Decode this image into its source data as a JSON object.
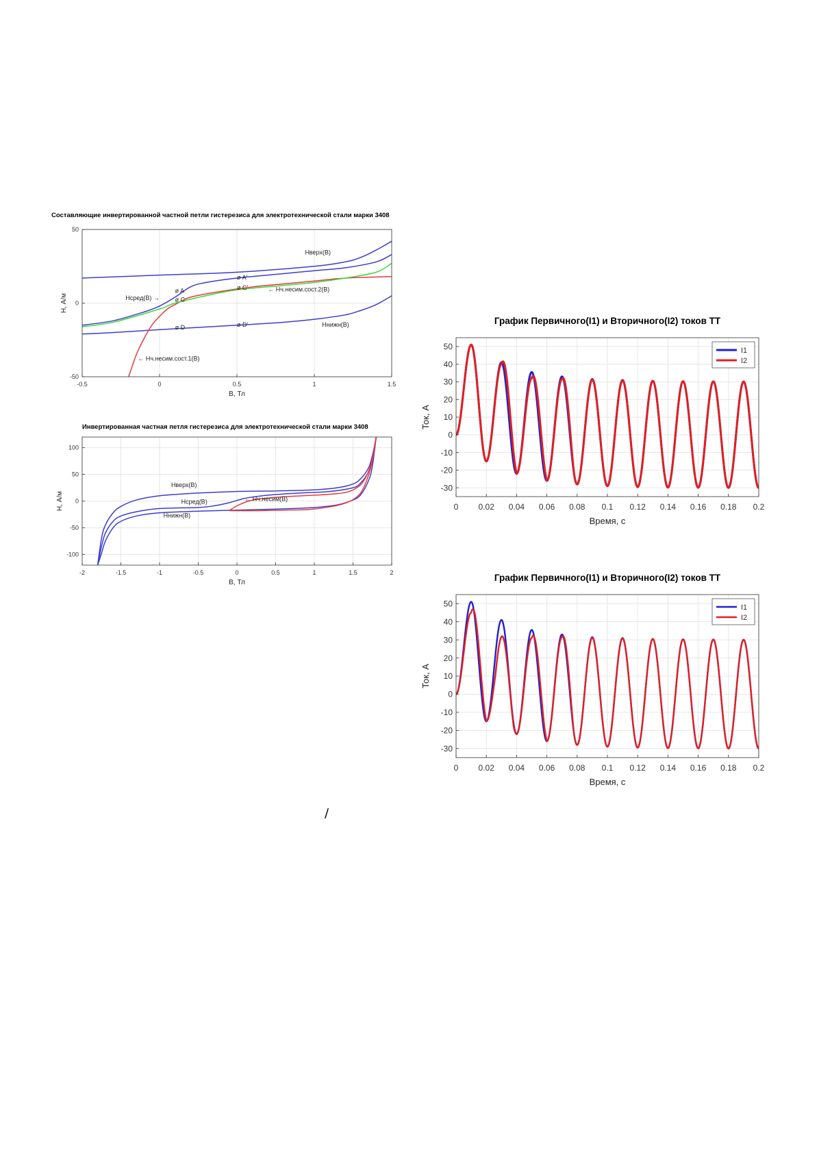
{
  "stray_mark": "/",
  "colors": {
    "blue": "#3c3cd2",
    "red": "#e53a3a",
    "green": "#3cd83c",
    "grid": "#e6e6e6"
  },
  "chart_data": [
    {
      "id": "chart1",
      "type": "line",
      "title": "Составляющие инвертированной частной петли гистерезиса для электротехнической стали марки 3408",
      "xlabel": "B, Тл",
      "ylabel": "H, А/м",
      "xlim": [
        -0.5,
        1.5
      ],
      "ylim": [
        -50,
        50
      ],
      "xticks": [
        -0.5,
        0,
        0.5,
        1,
        1.5
      ],
      "xtick_labels": [
        "-0.5",
        "0",
        "0.5",
        "1",
        "1.5"
      ],
      "yticks": [
        -50,
        0,
        50
      ],
      "ytick_labels": [
        "-50",
        "0",
        "50"
      ],
      "grid": true,
      "series": [
        {
          "name": "Hверх(B)",
          "color": "#3c3cd2",
          "x": [
            -0.5,
            0,
            0.5,
            1,
            1.2,
            1.3,
            1.4,
            1.5
          ],
          "y": [
            17,
            19,
            21,
            25,
            28,
            31,
            36,
            42
          ]
        },
        {
          "name": "Hсред(B)",
          "color": "#3c3cd2",
          "x": [
            -0.5,
            -0.3,
            -0.1,
            0,
            0.1,
            0.2,
            0.3,
            0.5,
            0.8,
            1,
            1.2,
            1.4,
            1.5
          ],
          "y": [
            -15,
            -12,
            -6,
            -2,
            4,
            11,
            14,
            17,
            20,
            22,
            24,
            28,
            33
          ]
        },
        {
          "name": "Hнижн(B)",
          "color": "#3c3cd2",
          "x": [
            -0.5,
            -0.3,
            0,
            0.5,
            0.8,
            1,
            1.2,
            1.3,
            1.4,
            1.5
          ],
          "y": [
            -21,
            -20,
            -18,
            -15,
            -13,
            -11,
            -8,
            -5,
            -1,
            5
          ]
        },
        {
          "name": "Hч.несим.сост.1(B)",
          "color": "#e53a3a",
          "x": [
            -0.2,
            -0.15,
            -0.1,
            -0.05,
            0,
            0.05,
            0.1,
            0.2,
            0.4,
            0.6,
            0.8,
            1,
            1.2,
            1.5
          ],
          "y": [
            -50,
            -35,
            -24,
            -15,
            -9,
            -4,
            -1,
            4,
            8,
            11,
            13,
            15,
            17,
            18
          ]
        },
        {
          "name": "Hч.несим.сост.2(B)",
          "color": "#3cd83c",
          "x": [
            -0.5,
            -0.3,
            0,
            0.1,
            0.3,
            0.5,
            0.8,
            1,
            1.2,
            1.4,
            1.5
          ],
          "y": [
            -16,
            -13,
            -4,
            0,
            5,
            9,
            12,
            14,
            17,
            21,
            27
          ]
        }
      ],
      "annotations": [
        {
          "text": "Hверх(B)",
          "x": 0.94,
          "y": 33
        },
        {
          "text": "Hсред(B)",
          "x": -0.22,
          "y": 2
        },
        {
          "text": "→",
          "x": -0.04,
          "y": 2
        },
        {
          "text": "Hнижн(B)",
          "x": 1.05,
          "y": -16
        },
        {
          "text": "← Hч.несим.сост.2(B)",
          "x": 0.7,
          "y": 8
        },
        {
          "text": "← Hч.несим.сост.1(B)",
          "x": -0.14,
          "y": -39
        },
        {
          "text": "ø A",
          "x": 0.1,
          "y": 7
        },
        {
          "text": "ø C",
          "x": 0.1,
          "y": 1
        },
        {
          "text": "ø D",
          "x": 0.1,
          "y": -18
        },
        {
          "text": "ø A'",
          "x": 0.5,
          "y": 16
        },
        {
          "text": "ø C'",
          "x": 0.5,
          "y": 9
        },
        {
          "text": "ø D'",
          "x": 0.5,
          "y": -16
        }
      ]
    },
    {
      "id": "chart2",
      "type": "line",
      "title": "Инвертированная частная петля гистерезиса для электротехнической стали марки 3408",
      "xlabel": "B, Тл",
      "ylabel": "H, А/м",
      "xlim": [
        -2,
        2
      ],
      "ylim": [
        -120,
        120
      ],
      "xticks": [
        -2,
        -1.5,
        -1,
        -0.5,
        0,
        0.5,
        1,
        1.5,
        2
      ],
      "xtick_labels": [
        "-2",
        "-1.5",
        "-1",
        "-0.5",
        "0",
        "0.5",
        "1",
        "1.5",
        "2"
      ],
      "yticks": [
        -100,
        -50,
        0,
        50,
        100
      ],
      "ytick_labels": [
        "-100",
        "-50",
        "0",
        "50",
        "100"
      ],
      "grid": true,
      "series": [
        {
          "name": "Hверх(B)",
          "color": "#3c3cd2",
          "x": [
            -1.8,
            -1.75,
            -1.7,
            -1.6,
            -1.5,
            -1.3,
            -1.0,
            -0.5,
            0,
            0.5,
            1.0,
            1.3,
            1.5,
            1.6,
            1.7,
            1.75,
            1.78,
            1.8
          ],
          "y": [
            -120,
            -70,
            -45,
            -22,
            -10,
            2,
            10,
            15,
            18,
            19,
            21,
            25,
            32,
            42,
            62,
            85,
            105,
            120
          ]
        },
        {
          "name": "Hсред(B)",
          "color": "#3c3cd2",
          "x": [
            -1.8,
            -1.75,
            -1.7,
            -1.6,
            -1.5,
            -1.3,
            -1.0,
            -0.5,
            -0.3,
            -0.1,
            0.1,
            0.4,
            0.8,
            1.2,
            1.5,
            1.6,
            1.7,
            1.75,
            1.8
          ],
          "y": [
            -120,
            -85,
            -60,
            -38,
            -28,
            -20,
            -14,
            -12,
            -9,
            -3,
            5,
            11,
            15,
            18,
            25,
            34,
            55,
            80,
            120
          ]
        },
        {
          "name": "Hнижн(B)",
          "color": "#3c3cd2",
          "x": [
            -1.8,
            -1.75,
            -1.7,
            -1.6,
            -1.5,
            -1.3,
            -1.0,
            -0.5,
            0,
            0.5,
            1.0,
            1.3,
            1.5,
            1.6,
            1.7,
            1.75,
            1.8
          ],
          "y": [
            -120,
            -98,
            -75,
            -50,
            -38,
            -28,
            -22,
            -19,
            -17,
            -15,
            -12,
            -7,
            2,
            12,
            38,
            65,
            120
          ]
        },
        {
          "name": "Hч.несим(B)",
          "color": "#e53a3a",
          "x": [
            -0.1,
            0,
            0.15,
            0.3,
            0.6,
            1.0,
            1.3,
            1.45,
            1.55,
            1.62,
            1.7,
            1.75,
            1.8
          ],
          "y": [
            -18,
            -9,
            0,
            4,
            8,
            11,
            14,
            18,
            25,
            34,
            55,
            80,
            120
          ]
        },
        {
          "name": "Hч.несим(B) нижн",
          "color": "#e53a3a",
          "x": [
            -0.1,
            0.3,
            0.6,
            0.9,
            1.1,
            1.3,
            1.45,
            1.55,
            1.62,
            1.7,
            1.75,
            1.8
          ],
          "y": [
            -18,
            -18,
            -17,
            -16,
            -13,
            -8,
            -1,
            8,
            20,
            48,
            75,
            120
          ]
        }
      ],
      "annotations": [
        {
          "text": "Hверх(B)",
          "x": -0.85,
          "y": 26
        },
        {
          "text": "Hсред(B)",
          "x": -0.72,
          "y": -5
        },
        {
          "text": "Hнижн(B)",
          "x": -0.95,
          "y": -31
        },
        {
          "text": "← Hч.несим(B)",
          "x": 0.1,
          "y": 0
        }
      ]
    },
    {
      "id": "chart3",
      "type": "line",
      "title": "График Первичного(I1) и Вторичного(I2) токов ТТ",
      "xlabel": "Время, с",
      "ylabel": "Ток, А",
      "xlim": [
        0,
        0.2
      ],
      "ylim": [
        -35,
        55
      ],
      "xticks": [
        0,
        0.02,
        0.04,
        0.06,
        0.08,
        0.1,
        0.12,
        0.14,
        0.16,
        0.18,
        0.2
      ],
      "xtick_labels": [
        "0",
        "0.02",
        "0.04",
        "0.06",
        "0.08",
        "0.1",
        "0.12",
        "0.14",
        "0.16",
        "0.18",
        "0.2"
      ],
      "yticks": [
        -30,
        -20,
        -10,
        0,
        10,
        20,
        30,
        40,
        50
      ],
      "ytick_labels": [
        "-30",
        "-20",
        "-10",
        "0",
        "10",
        "20",
        "30",
        "40",
        "50"
      ],
      "grid": true,
      "legend": {
        "position": "top-right",
        "items": [
          "I1",
          "I2"
        ]
      },
      "series": [
        {
          "name": "I1",
          "color": "#1f1fd6",
          "peaks_pos": [
            51,
            41,
            35.5,
            33,
            31.5,
            31,
            30.5,
            30.3,
            30.2,
            30.1
          ],
          "peaks_neg": [
            -15,
            -22,
            -26,
            -28,
            -29,
            -29.5,
            -29.8,
            -29.9,
            -30,
            -30
          ]
        },
        {
          "name": "I2",
          "color": "#e02020",
          "peaks_pos": [
            51,
            40,
            32,
            31.5,
            31.2,
            30.8,
            30.5,
            30.3,
            30.2,
            30.1
          ],
          "peaks_neg": [
            -15,
            -22,
            -26,
            -28,
            -29,
            -29.5,
            -29.8,
            -29.9,
            -30,
            -30
          ]
        }
      ]
    },
    {
      "id": "chart4",
      "type": "line",
      "title": "График Первичного(I1) и Вторичного(I2) токов ТТ",
      "xlabel": "Время, с",
      "ylabel": "Ток, А",
      "xlim": [
        0,
        0.2
      ],
      "ylim": [
        -35,
        55
      ],
      "xticks": [
        0,
        0.02,
        0.04,
        0.06,
        0.08,
        0.1,
        0.12,
        0.14,
        0.16,
        0.18,
        0.2
      ],
      "xtick_labels": [
        "0",
        "0.02",
        "0.04",
        "0.06",
        "0.08",
        "0.1",
        "0.12",
        "0.14",
        "0.16",
        "0.18",
        "0.2"
      ],
      "yticks": [
        -30,
        -20,
        -10,
        0,
        10,
        20,
        30,
        40,
        50
      ],
      "ytick_labels": [
        "-30",
        "-20",
        "-10",
        "0",
        "10",
        "20",
        "30",
        "40",
        "50"
      ],
      "grid": true,
      "legend": {
        "position": "top-right",
        "items": [
          "I1",
          "I2"
        ]
      },
      "series": [
        {
          "name": "I1",
          "color": "#1f1fd6",
          "peaks_pos": [
            51,
            41,
            35.5,
            33,
            31.5,
            31,
            30.5,
            30.3,
            30.2,
            30.1
          ],
          "peaks_neg": [
            -15,
            -22,
            -26,
            -28,
            -29,
            -29.5,
            -29.8,
            -29.9,
            -30,
            -30
          ]
        },
        {
          "name": "I2",
          "color": "#e02020",
          "peaks_pos": [
            45,
            24,
            31,
            31.5,
            31.2,
            30.8,
            30.5,
            30.3,
            30.2,
            30.1
          ],
          "peaks_neg": [
            -15,
            -22,
            -26,
            -28,
            -29,
            -29.5,
            -29.8,
            -29.9,
            -30,
            -30
          ]
        }
      ]
    }
  ]
}
